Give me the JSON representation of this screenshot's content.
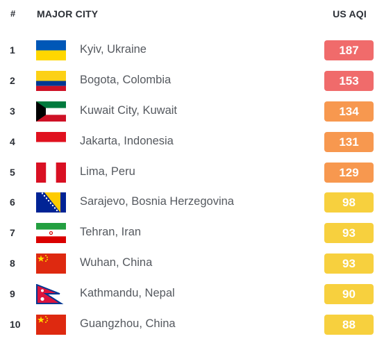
{
  "header": {
    "rank_label": "#",
    "city_label": "MAJOR CITY",
    "aqi_label": "US AQI"
  },
  "colors": {
    "unhealthy": "#f06b6b",
    "sensitive": "#f7984f",
    "moderate": "#f7d03e"
  },
  "rows": [
    {
      "rank": "1",
      "city": "Kyiv, Ukraine",
      "aqi": "187",
      "level": "unhealthy",
      "flag": "ukraine-flag-icon"
    },
    {
      "rank": "2",
      "city": "Bogota, Colombia",
      "aqi": "153",
      "level": "unhealthy",
      "flag": "colombia-flag-icon"
    },
    {
      "rank": "3",
      "city": "Kuwait City, Kuwait",
      "aqi": "134",
      "level": "sensitive",
      "flag": "kuwait-flag-icon"
    },
    {
      "rank": "4",
      "city": "Jakarta, Indonesia",
      "aqi": "131",
      "level": "sensitive",
      "flag": "indonesia-flag-icon"
    },
    {
      "rank": "5",
      "city": "Lima, Peru",
      "aqi": "129",
      "level": "sensitive",
      "flag": "peru-flag-icon"
    },
    {
      "rank": "6",
      "city": "Sarajevo, Bosnia Herzegovina",
      "aqi": "98",
      "level": "moderate",
      "flag": "bosnia-flag-icon"
    },
    {
      "rank": "7",
      "city": "Tehran, Iran",
      "aqi": "93",
      "level": "moderate",
      "flag": "iran-flag-icon"
    },
    {
      "rank": "8",
      "city": "Wuhan, China",
      "aqi": "93",
      "level": "moderate",
      "flag": "china-flag-icon"
    },
    {
      "rank": "9",
      "city": "Kathmandu, Nepal",
      "aqi": "90",
      "level": "moderate",
      "flag": "nepal-flag-icon"
    },
    {
      "rank": "10",
      "city": "Guangzhou, China",
      "aqi": "88",
      "level": "moderate",
      "flag": "china-flag-icon"
    }
  ]
}
